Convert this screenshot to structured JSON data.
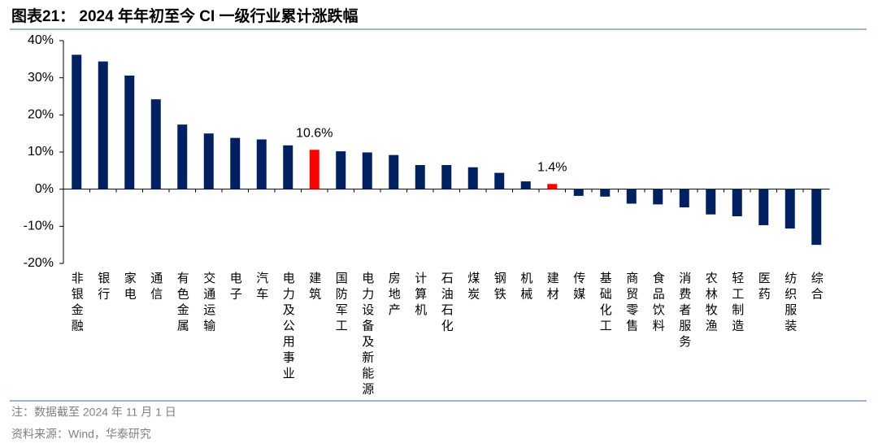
{
  "chart_data": {
    "type": "bar",
    "title": "图表21： 2024 年年初至今 CI 一级行业累计涨跌幅",
    "categories": [
      "非银金融",
      "银行",
      "家电",
      "通信",
      "有色金属",
      "交通运输",
      "电子",
      "汽车",
      "电力及公用事业",
      "建筑",
      "国防军工",
      "电力设备及新能源",
      "房地产",
      "计算机",
      "石油石化",
      "煤炭",
      "钢铁",
      "机械",
      "建材",
      "传媒",
      "基础化工",
      "商贸零售",
      "食品饮料",
      "消费者服务",
      "农林牧渔",
      "轻工制造",
      "医药",
      "纺织服装",
      "综合"
    ],
    "values": [
      36.2,
      34.4,
      30.6,
      24.2,
      17.4,
      15.0,
      13.8,
      13.4,
      11.8,
      10.6,
      10.2,
      9.9,
      9.2,
      6.5,
      6.5,
      5.9,
      4.4,
      2.1,
      1.4,
      -1.8,
      -2.0,
      -3.9,
      -4.1,
      -4.9,
      -6.8,
      -7.3,
      -9.7,
      -10.6,
      -15.0
    ],
    "value_labels": [
      null,
      null,
      null,
      null,
      null,
      null,
      null,
      null,
      null,
      "10.6%",
      null,
      null,
      null,
      null,
      null,
      null,
      null,
      null,
      "1.4%",
      null,
      null,
      null,
      null,
      null,
      null,
      null,
      null,
      null,
      null
    ],
    "colors": [
      "#002060",
      "#002060",
      "#002060",
      "#002060",
      "#002060",
      "#002060",
      "#002060",
      "#002060",
      "#002060",
      "#ff0000",
      "#002060",
      "#002060",
      "#002060",
      "#002060",
      "#002060",
      "#002060",
      "#002060",
      "#002060",
      "#ff0000",
      "#002060",
      "#002060",
      "#002060",
      "#002060",
      "#002060",
      "#002060",
      "#002060",
      "#002060",
      "#002060",
      "#002060"
    ],
    "ylim": [
      -20,
      40
    ],
    "yticks": [
      {
        "value": -20,
        "label": "-20%"
      },
      {
        "value": -10,
        "label": "-10%"
      },
      {
        "value": 0,
        "label": "0%"
      },
      {
        "value": 10,
        "label": "10%"
      },
      {
        "value": 20,
        "label": "20%"
      },
      {
        "value": 30,
        "label": "30%"
      },
      {
        "value": 40,
        "label": "40%"
      }
    ],
    "grid": false
  },
  "notes": [
    "注：数据截至 2024 年 11 月 1 日",
    "资料来源：Wind，华泰研究"
  ]
}
